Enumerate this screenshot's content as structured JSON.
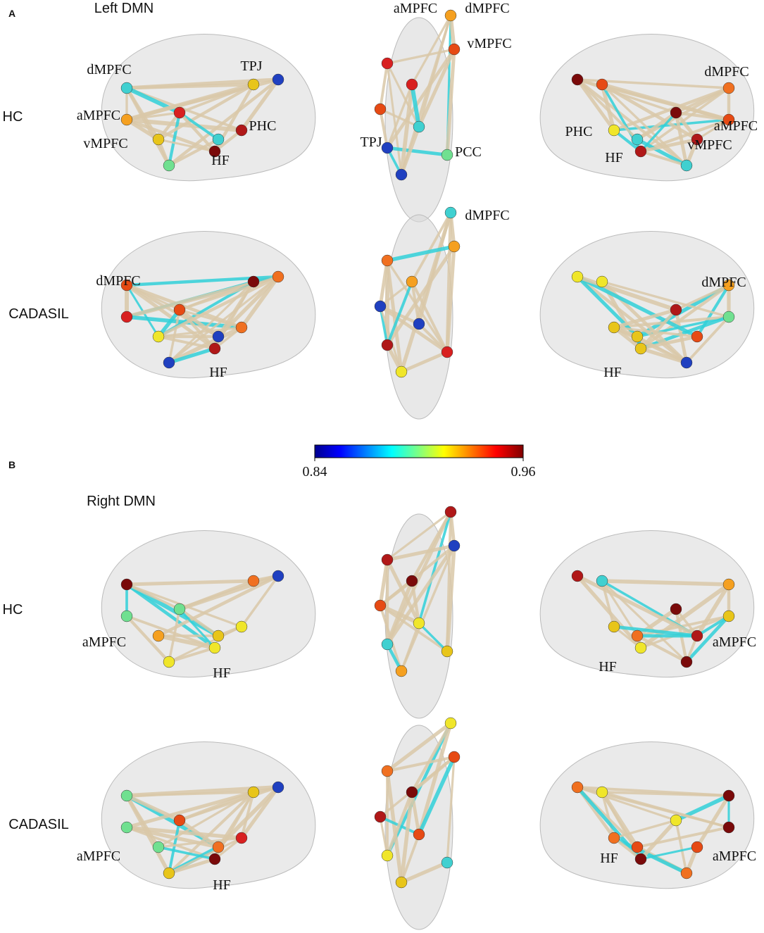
{
  "panels": [
    {
      "letter": "A",
      "title": "Left DMN",
      "rows": [
        {
          "label": "HC",
          "views": [
            [
              "dMPFC",
              "TPJ",
              "aMPFC",
              "PHC",
              "vMPFC",
              "HF"
            ],
            [
              "aMPFC",
              "dMPFC",
              "vMPFC",
              "TPJ",
              "PCC"
            ],
            [
              "dMPFC",
              "PHC",
              "aMPFC",
              "HF",
              "vMPFC"
            ]
          ]
        },
        {
          "label": "CADASIL",
          "views": [
            [
              "dMPFC",
              "HF"
            ],
            [
              "dMPFC"
            ],
            [
              "dMPFC",
              "HF"
            ]
          ]
        }
      ]
    },
    {
      "letter": "B",
      "title": "Right DMN",
      "rows": [
        {
          "label": "HC",
          "views": [
            [
              "aMPFC",
              "HF"
            ],
            [],
            [
              "HF",
              "aMPFC"
            ]
          ]
        },
        {
          "label": "CADASIL",
          "views": [
            [
              "aMPFC",
              "HF"
            ],
            [],
            [
              "HF",
              "aMPFC"
            ]
          ]
        }
      ]
    }
  ],
  "colorbar": {
    "clim": [
      0.84,
      0.96
    ],
    "ticks": [
      0.84,
      0.96
    ]
  }
}
